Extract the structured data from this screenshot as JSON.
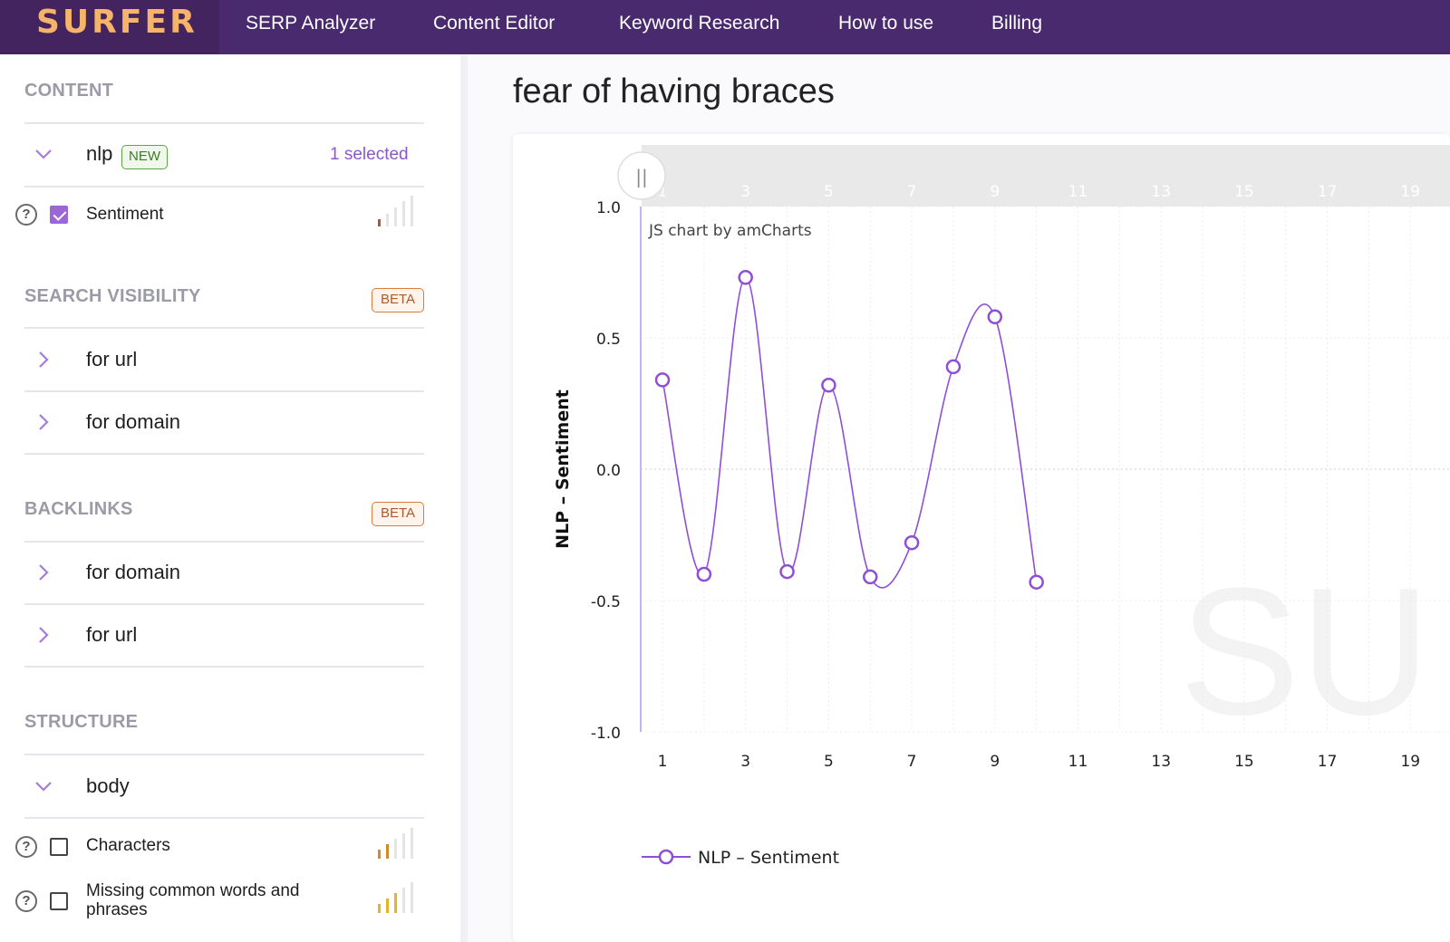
{
  "app": {
    "logo": "SURFER",
    "nav": [
      "SERP Analyzer",
      "Content Editor",
      "Keyword Research",
      "How to use",
      "Billing"
    ]
  },
  "sidebar": {
    "content": {
      "title": "CONTENT",
      "nlp": {
        "label": "nlp",
        "badge": "NEW",
        "selected": "1 selected"
      },
      "sentiment": {
        "label": "Sentiment",
        "checked": true
      }
    },
    "search_visibility": {
      "title": "SEARCH VISIBILITY",
      "badge": "BETA",
      "items": [
        "for url",
        "for domain"
      ]
    },
    "backlinks": {
      "title": "BACKLINKS",
      "badge": "BETA",
      "items": [
        "for domain",
        "for url"
      ]
    },
    "structure": {
      "title": "STRUCTURE",
      "body_label": "body",
      "metrics": [
        "Characters",
        "Missing common words and phrases"
      ]
    },
    "help_glyph": "?"
  },
  "main": {
    "title": "fear of having braces",
    "scrollbar_grip": "||",
    "credit": "JS chart by amCharts",
    "watermark": "SU"
  },
  "chart_data": {
    "type": "line",
    "ylabel": "NLP – Sentiment",
    "xlabel": "",
    "x": [
      1,
      2,
      3,
      4,
      5,
      6,
      7,
      8,
      9,
      10
    ],
    "series": [
      {
        "name": "NLP – Sentiment",
        "values": [
          0.34,
          -0.4,
          0.73,
          -0.39,
          0.32,
          -0.41,
          -0.28,
          0.39,
          0.58,
          -0.43
        ]
      }
    ],
    "xlim": [
      0.5,
      19.5
    ],
    "ylim": [
      -1.0,
      1.0
    ],
    "x_ticks": [
      1,
      3,
      5,
      7,
      9,
      11,
      13,
      15,
      17,
      19
    ],
    "y_ticks": [
      "1.0",
      "0.5",
      "0.0",
      "-0.5",
      "-1.0"
    ],
    "y_tick_values": [
      1.0,
      0.5,
      0.0,
      -0.5,
      -1.0
    ],
    "grid": true,
    "legend": "bottom-left",
    "color": "#8e4fd6"
  }
}
